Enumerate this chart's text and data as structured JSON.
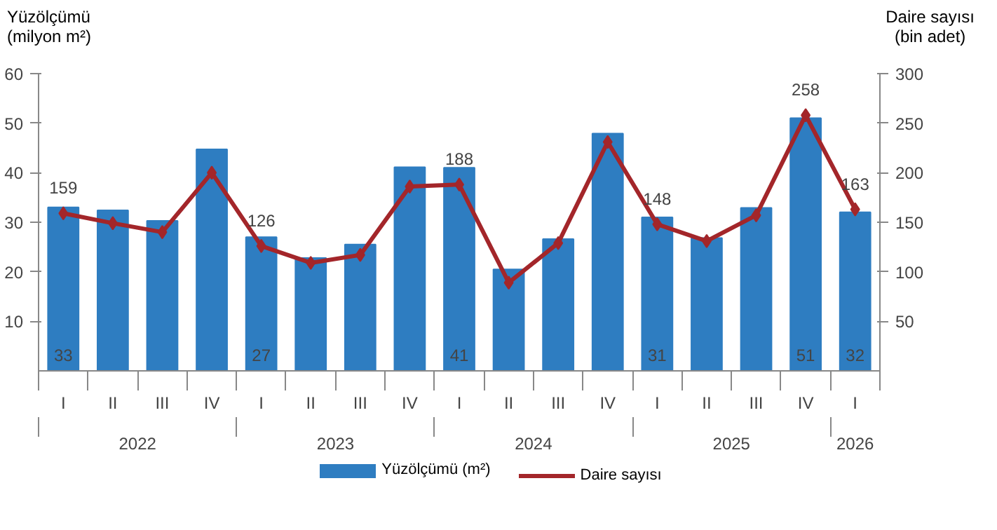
{
  "chart_data": {
    "type": "bar",
    "categories": [
      "I",
      "II",
      "III",
      "IV",
      "I",
      "II",
      "III",
      "IV",
      "I",
      "II",
      "III",
      "IV",
      "I",
      "II",
      "III",
      "IV",
      "I"
    ],
    "annotations": [
      "2022",
      "2023",
      "2024",
      "2025",
      "2026"
    ],
    "ylabel": "Yüzölçümü\n(milyon m²)",
    "y2label": "Daire sayısı\n(bin adet)",
    "ylim": [
      0,
      60
    ],
    "yticks": [
      10,
      20,
      30,
      40,
      50,
      60
    ],
    "y2lim": [
      0,
      300
    ],
    "y2ticks": [
      50,
      100,
      150,
      200,
      250,
      300
    ],
    "grid": false,
    "legend": "bottom",
    "series": [
      {
        "name": "Yüzölçümü (m²)",
        "color": "#2e7dc1",
        "values": [
          33,
          32.4,
          30.3,
          44.7,
          27,
          22.8,
          25.5,
          41.1,
          41,
          20.5,
          26.6,
          47.9,
          31,
          26.8,
          32.9,
          51,
          32
        ],
        "value_labels": [
          "33",
          null,
          null,
          null,
          "27",
          null,
          null,
          null,
          "41",
          null,
          null,
          null,
          "31",
          null,
          null,
          "51",
          "32"
        ]
      },
      {
        "name": "Daire sayısı",
        "type": "line",
        "axis": "y2",
        "color": "#a3262a",
        "marker": "diamond",
        "values": [
          159,
          149,
          140,
          200,
          126,
          109,
          117,
          186,
          188,
          89,
          129,
          231,
          148,
          131,
          157,
          258,
          163
        ],
        "value_labels": [
          "159",
          null,
          null,
          null,
          "126",
          null,
          null,
          null,
          "188",
          null,
          null,
          null,
          "148",
          null,
          null,
          "258",
          "163"
        ]
      }
    ]
  }
}
